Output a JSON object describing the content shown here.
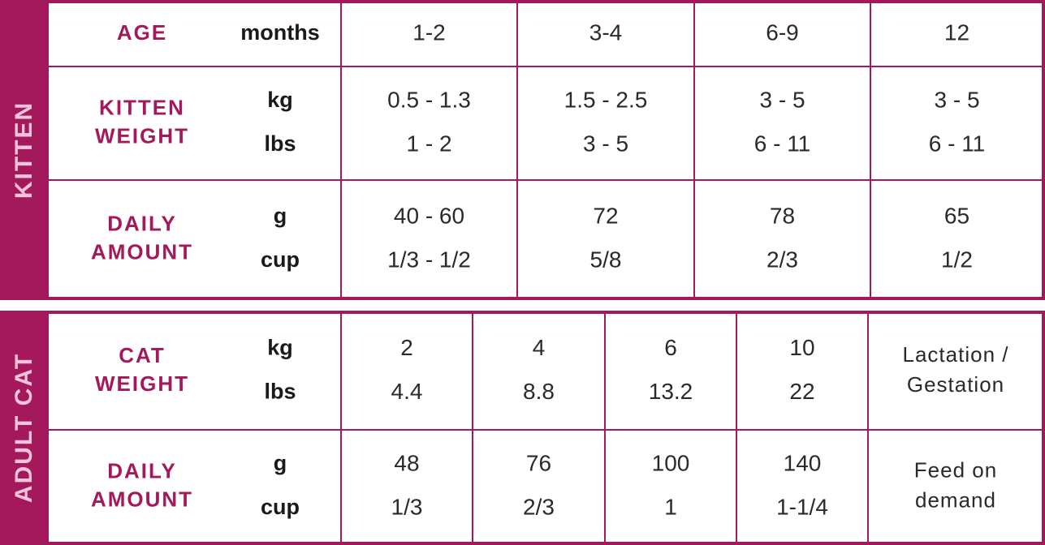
{
  "sections": [
    {
      "title": "KITTEN",
      "rows": [
        {
          "label": [
            "AGE"
          ],
          "units": [
            "months"
          ],
          "values": [
            [
              "1-2"
            ],
            [
              "3-4"
            ],
            [
              "6-9"
            ],
            [
              "12"
            ]
          ]
        },
        {
          "label": [
            "KITTEN",
            "WEIGHT"
          ],
          "units": [
            "kg",
            "lbs"
          ],
          "values": [
            [
              "0.5 - 1.3",
              "1 - 2"
            ],
            [
              "1.5 - 2.5",
              "3 - 5"
            ],
            [
              "3 - 5",
              "6 - 11"
            ],
            [
              "3 - 5",
              "6 - 11"
            ]
          ]
        },
        {
          "label": [
            "DAILY",
            "AMOUNT"
          ],
          "units": [
            "g",
            "cup"
          ],
          "values": [
            [
              "40 - 60",
              "1/3 - 1/2"
            ],
            [
              "72",
              "5/8"
            ],
            [
              "78",
              "2/3"
            ],
            [
              "65",
              "1/2"
            ]
          ]
        }
      ]
    },
    {
      "title": "ADULT CAT",
      "rows": [
        {
          "label": [
            "CAT",
            "WEIGHT"
          ],
          "units": [
            "kg",
            "lbs"
          ],
          "values": [
            [
              "2",
              "4.4"
            ],
            [
              "4",
              "8.8"
            ],
            [
              "6",
              "13.2"
            ],
            [
              "10",
              "22"
            ]
          ],
          "note": [
            "Lactation /",
            "Gestation"
          ]
        },
        {
          "label": [
            "DAILY",
            "AMOUNT"
          ],
          "units": [
            "g",
            "cup"
          ],
          "values": [
            [
              "48",
              "1/3"
            ],
            [
              "76",
              "2/3"
            ],
            [
              "100",
              "1"
            ],
            [
              "140",
              "1-1/4"
            ]
          ],
          "note": [
            "Feed on",
            "demand"
          ]
        }
      ]
    }
  ]
}
